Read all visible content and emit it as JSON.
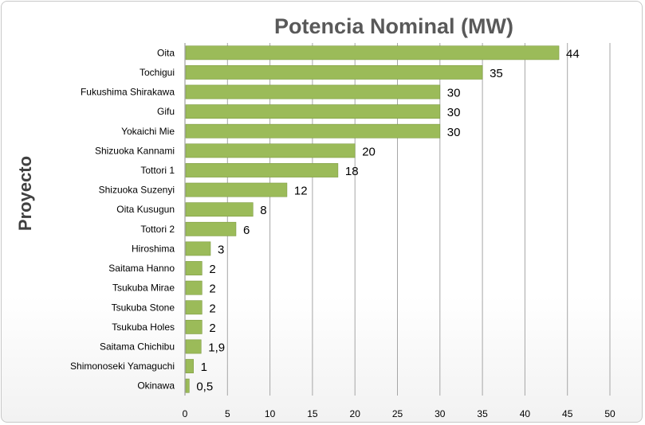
{
  "chart_data": {
    "type": "bar",
    "orientation": "horizontal",
    "title": "Potencia Nominal (MW)",
    "xlabel": "",
    "ylabel": "Proyecto",
    "categories": [
      "Oita",
      "Tochigui",
      "Fukushima Shirakawa",
      "Gifu",
      "Yokaichi Mie",
      "Shizuoka Kannami",
      "Tottori 1",
      "Shizuoka Suzenyi",
      "Oita Kusugun",
      "Tottori 2",
      "Hiroshima",
      "Saitama Hanno",
      "Tsukuba Mirae",
      "Tsukuba Stone",
      "Tsukuba Holes",
      "Saitama Chichibu",
      "Shimonoseki Yamaguchi",
      "Okinawa"
    ],
    "values": [
      44,
      35,
      30,
      30,
      30,
      20,
      18,
      12,
      8,
      6,
      3,
      2,
      2,
      2,
      2,
      1.9,
      1,
      0.5
    ],
    "value_labels": [
      "44",
      "35",
      "30",
      "30",
      "30",
      "20",
      "18",
      "12",
      "8",
      "6",
      "3",
      "2",
      "2",
      "2",
      "2",
      "1,9",
      "1",
      "0,5"
    ],
    "xlim": [
      0,
      50
    ],
    "xticks": [
      0,
      5,
      10,
      15,
      20,
      25,
      30,
      35,
      40,
      45,
      50
    ],
    "grid": "vertical",
    "legend": "none",
    "bar_color": "#9BBB59",
    "bar_edge_color": "#7E9C42"
  }
}
